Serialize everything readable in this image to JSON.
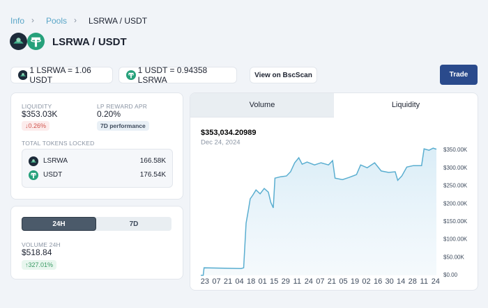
{
  "breadcrumb": [
    "Info",
    "Pools",
    "LSRWA / USDT"
  ],
  "header": {
    "title": "LSRWA / USDT"
  },
  "prices": [
    "1 LSRWA = 1.06 USDT",
    "1 USDT = 0.94358 LSRWA"
  ],
  "bscscan": "View on BscScan",
  "trade": "Trade",
  "stats": {
    "liquidity_label": "LIQUIDITY",
    "liquidity": "$353.03K",
    "liquidity_change": "↓0.26%",
    "apr_label": "LP REWARD APR",
    "apr": "0.20%",
    "apr_note": "7D performance",
    "locked_label": "TOTAL TOKENS LOCKED",
    "tokens": [
      {
        "symbol": "LSRWA",
        "amount": "166.58K"
      },
      {
        "symbol": "USDT",
        "amount": "176.54K"
      }
    ]
  },
  "volume": {
    "tabs": [
      "24H",
      "7D"
    ],
    "label": "VOLUME 24H",
    "value": "$518.84",
    "change": "↑327.01%"
  },
  "chart_tabs": [
    "Volume",
    "Liquidity"
  ],
  "chart_data": {
    "type": "area",
    "title": "$353,034.20989",
    "subtitle": "Dec 24, 2024",
    "color": "#5aaed0",
    "x": [
      -5,
      -2,
      -1,
      44,
      47,
      50,
      53,
      55,
      58,
      62,
      67,
      72,
      77,
      80,
      83,
      85,
      92,
      99,
      104,
      109,
      114,
      118,
      124,
      133,
      141,
      150,
      155,
      158,
      167,
      175,
      184,
      189,
      197,
      206,
      214,
      223,
      231,
      234,
      239,
      245,
      253,
      263,
      266,
      272,
      277,
      281
    ],
    "values": [
      0,
      0,
      21000,
      19000,
      21000,
      146000,
      185000,
      214000,
      224000,
      239000,
      228000,
      243000,
      233000,
      204000,
      189000,
      272000,
      276000,
      278000,
      290000,
      315000,
      329000,
      311000,
      317000,
      309000,
      315000,
      309000,
      321000,
      272000,
      268000,
      274000,
      282000,
      309000,
      301000,
      315000,
      292000,
      288000,
      290000,
      266000,
      278000,
      303000,
      307000,
      307000,
      354000,
      350000,
      356000,
      353034
    ],
    "xlim": [
      -5,
      281
    ],
    "xticks": [
      {
        "value": 0,
        "label": "23"
      },
      {
        "value": 14,
        "label": "07"
      },
      {
        "value": 28,
        "label": "21"
      },
      {
        "value": 42,
        "label": "04"
      },
      {
        "value": 56,
        "label": "18"
      },
      {
        "value": 70,
        "label": "01"
      },
      {
        "value": 84,
        "label": "15"
      },
      {
        "value": 98,
        "label": "29"
      },
      {
        "value": 112,
        "label": "11"
      },
      {
        "value": 126,
        "label": "24"
      },
      {
        "value": 140,
        "label": "07"
      },
      {
        "value": 154,
        "label": "21"
      },
      {
        "value": 168,
        "label": "05"
      },
      {
        "value": 182,
        "label": "19"
      },
      {
        "value": 196,
        "label": "02"
      },
      {
        "value": 210,
        "label": "16"
      },
      {
        "value": 224,
        "label": "30"
      },
      {
        "value": 238,
        "label": "14"
      },
      {
        "value": 252,
        "label": "28"
      },
      {
        "value": 266,
        "label": "11"
      },
      {
        "value": 280,
        "label": "24"
      }
    ],
    "ylim": [
      0,
      360000
    ],
    "yticks": [
      {
        "value": 0,
        "label": "$0.00"
      },
      {
        "value": 50000,
        "label": "$50.00K"
      },
      {
        "value": 100000,
        "label": "$100.00K"
      },
      {
        "value": 150000,
        "label": "$150.00K"
      },
      {
        "value": 200000,
        "label": "$200.00K"
      },
      {
        "value": 250000,
        "label": "$250.00K"
      },
      {
        "value": 300000,
        "label": "$300.00K"
      },
      {
        "value": 350000,
        "label": "$350.00K"
      }
    ]
  }
}
